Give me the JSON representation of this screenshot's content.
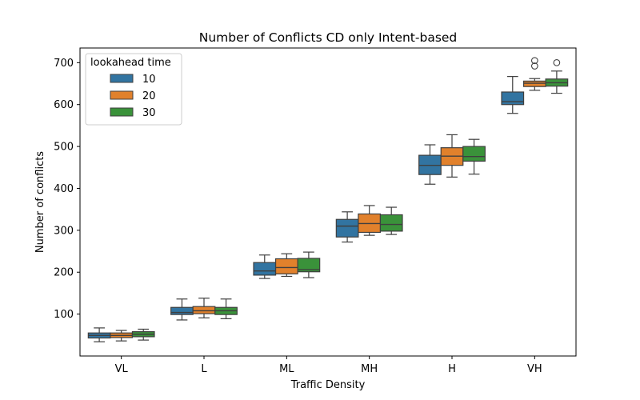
{
  "chart_data": {
    "type": "boxplot",
    "title": "Number of Conflicts CD only Intent-based",
    "xlabel": "Traffic Density",
    "ylabel": "Number of conflicts",
    "categories": [
      "VL",
      "L",
      "ML",
      "MH",
      "H",
      "VH"
    ],
    "ylim": [
      0,
      735
    ],
    "yticks": [
      100,
      200,
      300,
      400,
      500,
      600,
      700
    ],
    "legend": {
      "title": "lookahead time",
      "placement": "upper-left"
    },
    "series": [
      {
        "name": "10",
        "color": "#3274a1",
        "boxes": [
          {
            "min": 34,
            "q1": 43,
            "median": 49,
            "q3": 55,
            "max": 67,
            "outliers": []
          },
          {
            "min": 86,
            "q1": 99,
            "median": 104,
            "q3": 116,
            "max": 136,
            "outliers": []
          },
          {
            "min": 185,
            "q1": 193,
            "median": 203,
            "q3": 223,
            "max": 241,
            "outliers": []
          },
          {
            "min": 272,
            "q1": 284,
            "median": 310,
            "q3": 326,
            "max": 344,
            "outliers": []
          },
          {
            "min": 410,
            "q1": 433,
            "median": 455,
            "q3": 479,
            "max": 504,
            "outliers": []
          },
          {
            "min": 579,
            "q1": 600,
            "median": 607,
            "q3": 630,
            "max": 667,
            "outliers": []
          }
        ]
      },
      {
        "name": "20",
        "color": "#e1812c",
        "boxes": [
          {
            "min": 36,
            "q1": 44,
            "median": 49,
            "q3": 55,
            "max": 61,
            "outliers": []
          },
          {
            "min": 91,
            "q1": 101,
            "median": 108,
            "q3": 118,
            "max": 138,
            "outliers": []
          },
          {
            "min": 190,
            "q1": 196,
            "median": 211,
            "q3": 232,
            "max": 244,
            "outliers": []
          },
          {
            "min": 288,
            "q1": 295,
            "median": 316,
            "q3": 339,
            "max": 359,
            "outliers": []
          },
          {
            "min": 427,
            "q1": 455,
            "median": 477,
            "q3": 497,
            "max": 528,
            "outliers": []
          },
          {
            "min": 634,
            "q1": 643,
            "median": 651,
            "q3": 656,
            "max": 662,
            "outliers": [
              692,
              705
            ]
          }
        ]
      },
      {
        "name": "30",
        "color": "#3a923a",
        "boxes": [
          {
            "min": 38,
            "q1": 46,
            "median": 52,
            "q3": 58,
            "max": 64,
            "outliers": []
          },
          {
            "min": 89,
            "q1": 99,
            "median": 108,
            "q3": 116,
            "max": 136,
            "outliers": []
          },
          {
            "min": 187,
            "q1": 201,
            "median": 206,
            "q3": 233,
            "max": 248,
            "outliers": []
          },
          {
            "min": 290,
            "q1": 298,
            "median": 314,
            "q3": 337,
            "max": 355,
            "outliers": []
          },
          {
            "min": 434,
            "q1": 465,
            "median": 476,
            "q3": 500,
            "max": 517,
            "outliers": []
          },
          {
            "min": 627,
            "q1": 644,
            "median": 652,
            "q3": 661,
            "max": 680,
            "outliers": [
              700
            ]
          }
        ]
      }
    ]
  }
}
